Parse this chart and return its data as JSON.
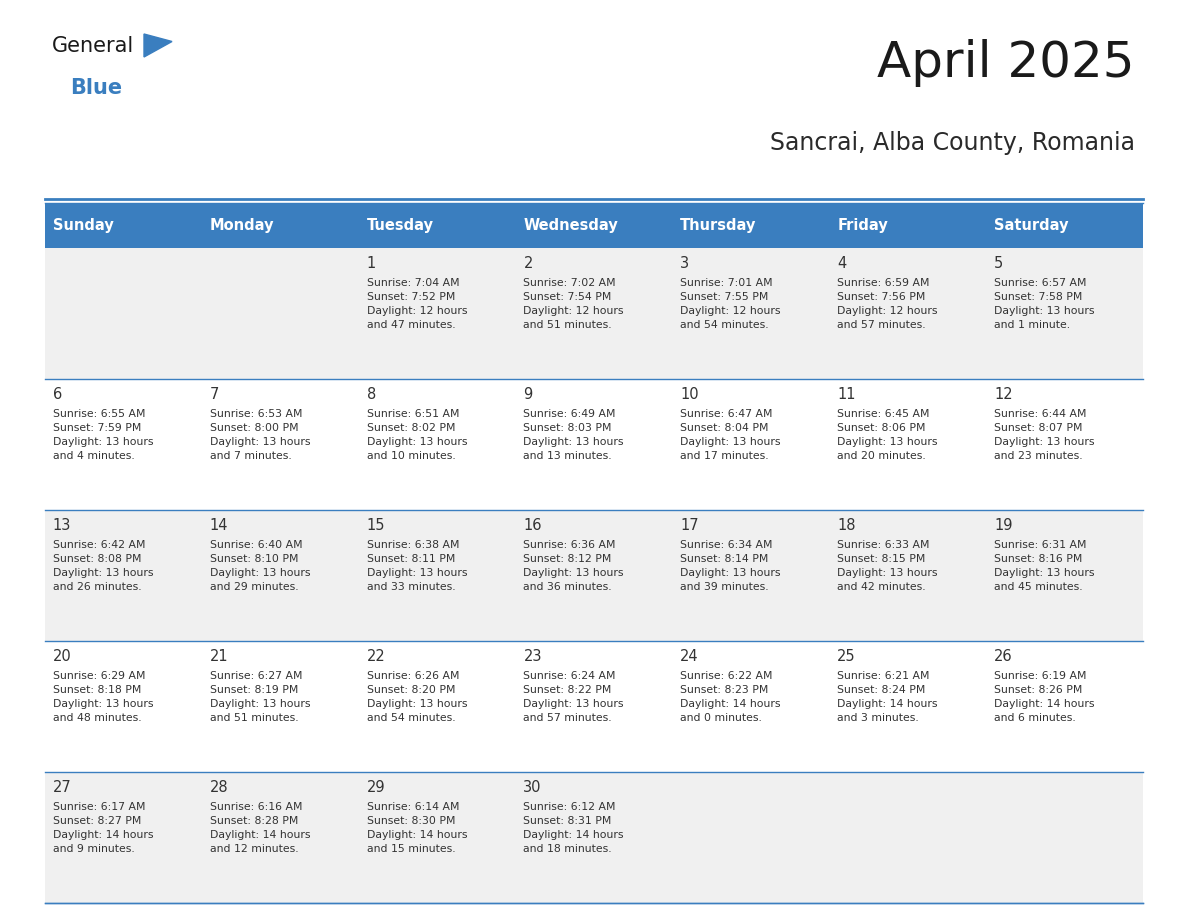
{
  "title": "April 2025",
  "subtitle": "Sancrai, Alba County, Romania",
  "days_of_week": [
    "Sunday",
    "Monday",
    "Tuesday",
    "Wednesday",
    "Thursday",
    "Friday",
    "Saturday"
  ],
  "header_bg": "#3a7ebf",
  "header_text": "#ffffff",
  "row_bg_odd": "#f0f0f0",
  "row_bg_even": "#ffffff",
  "cell_border": "#3a7ebf",
  "title_color": "#1a1a1a",
  "subtitle_color": "#2a2a2a",
  "text_color": "#333333",
  "logo_general_color": "#1a1a1a",
  "logo_blue_color": "#3a7ebf",
  "logo_triangle_color": "#3a7ebf",
  "calendar": [
    [
      {
        "day": "",
        "info": ""
      },
      {
        "day": "",
        "info": ""
      },
      {
        "day": "1",
        "info": "Sunrise: 7:04 AM\nSunset: 7:52 PM\nDaylight: 12 hours\nand 47 minutes."
      },
      {
        "day": "2",
        "info": "Sunrise: 7:02 AM\nSunset: 7:54 PM\nDaylight: 12 hours\nand 51 minutes."
      },
      {
        "day": "3",
        "info": "Sunrise: 7:01 AM\nSunset: 7:55 PM\nDaylight: 12 hours\nand 54 minutes."
      },
      {
        "day": "4",
        "info": "Sunrise: 6:59 AM\nSunset: 7:56 PM\nDaylight: 12 hours\nand 57 minutes."
      },
      {
        "day": "5",
        "info": "Sunrise: 6:57 AM\nSunset: 7:58 PM\nDaylight: 13 hours\nand 1 minute."
      }
    ],
    [
      {
        "day": "6",
        "info": "Sunrise: 6:55 AM\nSunset: 7:59 PM\nDaylight: 13 hours\nand 4 minutes."
      },
      {
        "day": "7",
        "info": "Sunrise: 6:53 AM\nSunset: 8:00 PM\nDaylight: 13 hours\nand 7 minutes."
      },
      {
        "day": "8",
        "info": "Sunrise: 6:51 AM\nSunset: 8:02 PM\nDaylight: 13 hours\nand 10 minutes."
      },
      {
        "day": "9",
        "info": "Sunrise: 6:49 AM\nSunset: 8:03 PM\nDaylight: 13 hours\nand 13 minutes."
      },
      {
        "day": "10",
        "info": "Sunrise: 6:47 AM\nSunset: 8:04 PM\nDaylight: 13 hours\nand 17 minutes."
      },
      {
        "day": "11",
        "info": "Sunrise: 6:45 AM\nSunset: 8:06 PM\nDaylight: 13 hours\nand 20 minutes."
      },
      {
        "day": "12",
        "info": "Sunrise: 6:44 AM\nSunset: 8:07 PM\nDaylight: 13 hours\nand 23 minutes."
      }
    ],
    [
      {
        "day": "13",
        "info": "Sunrise: 6:42 AM\nSunset: 8:08 PM\nDaylight: 13 hours\nand 26 minutes."
      },
      {
        "day": "14",
        "info": "Sunrise: 6:40 AM\nSunset: 8:10 PM\nDaylight: 13 hours\nand 29 minutes."
      },
      {
        "day": "15",
        "info": "Sunrise: 6:38 AM\nSunset: 8:11 PM\nDaylight: 13 hours\nand 33 minutes."
      },
      {
        "day": "16",
        "info": "Sunrise: 6:36 AM\nSunset: 8:12 PM\nDaylight: 13 hours\nand 36 minutes."
      },
      {
        "day": "17",
        "info": "Sunrise: 6:34 AM\nSunset: 8:14 PM\nDaylight: 13 hours\nand 39 minutes."
      },
      {
        "day": "18",
        "info": "Sunrise: 6:33 AM\nSunset: 8:15 PM\nDaylight: 13 hours\nand 42 minutes."
      },
      {
        "day": "19",
        "info": "Sunrise: 6:31 AM\nSunset: 8:16 PM\nDaylight: 13 hours\nand 45 minutes."
      }
    ],
    [
      {
        "day": "20",
        "info": "Sunrise: 6:29 AM\nSunset: 8:18 PM\nDaylight: 13 hours\nand 48 minutes."
      },
      {
        "day": "21",
        "info": "Sunrise: 6:27 AM\nSunset: 8:19 PM\nDaylight: 13 hours\nand 51 minutes."
      },
      {
        "day": "22",
        "info": "Sunrise: 6:26 AM\nSunset: 8:20 PM\nDaylight: 13 hours\nand 54 minutes."
      },
      {
        "day": "23",
        "info": "Sunrise: 6:24 AM\nSunset: 8:22 PM\nDaylight: 13 hours\nand 57 minutes."
      },
      {
        "day": "24",
        "info": "Sunrise: 6:22 AM\nSunset: 8:23 PM\nDaylight: 14 hours\nand 0 minutes."
      },
      {
        "day": "25",
        "info": "Sunrise: 6:21 AM\nSunset: 8:24 PM\nDaylight: 14 hours\nand 3 minutes."
      },
      {
        "day": "26",
        "info": "Sunrise: 6:19 AM\nSunset: 8:26 PM\nDaylight: 14 hours\nand 6 minutes."
      }
    ],
    [
      {
        "day": "27",
        "info": "Sunrise: 6:17 AM\nSunset: 8:27 PM\nDaylight: 14 hours\nand 9 minutes."
      },
      {
        "day": "28",
        "info": "Sunrise: 6:16 AM\nSunset: 8:28 PM\nDaylight: 14 hours\nand 12 minutes."
      },
      {
        "day": "29",
        "info": "Sunrise: 6:14 AM\nSunset: 8:30 PM\nDaylight: 14 hours\nand 15 minutes."
      },
      {
        "day": "30",
        "info": "Sunrise: 6:12 AM\nSunset: 8:31 PM\nDaylight: 14 hours\nand 18 minutes."
      },
      {
        "day": "",
        "info": ""
      },
      {
        "day": "",
        "info": ""
      },
      {
        "day": "",
        "info": ""
      }
    ]
  ]
}
